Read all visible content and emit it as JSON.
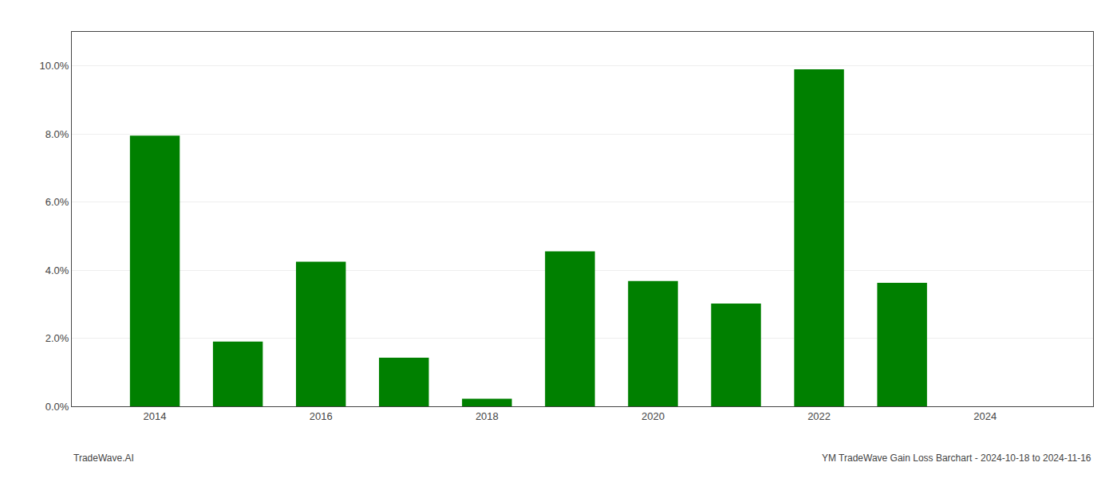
{
  "chart_data": {
    "type": "bar",
    "x": [
      2014,
      2015,
      2016,
      2017,
      2018,
      2019,
      2020,
      2021,
      2022,
      2023,
      2024
    ],
    "values": [
      0.0795,
      0.019,
      0.0425,
      0.0143,
      0.0022,
      0.0455,
      0.0368,
      0.0302,
      0.099,
      0.0363,
      0.0
    ],
    "color": "#008000",
    "xlim": [
      2013.0,
      2025.3
    ],
    "xticks": [
      2014,
      2016,
      2018,
      2020,
      2022,
      2024
    ],
    "ylim": [
      0,
      0.11
    ],
    "yticks": [
      {
        "value": 0.0,
        "label": "0.0%"
      },
      {
        "value": 0.02,
        "label": "2.0%"
      },
      {
        "value": 0.04,
        "label": "4.0%"
      },
      {
        "value": 0.06,
        "label": "6.0%"
      },
      {
        "value": 0.08,
        "label": "8.0%"
      },
      {
        "value": 0.1,
        "label": "10.0%"
      }
    ],
    "grid": true,
    "annotations": [
      "TradeWave.AI",
      "YM TradeWave Gain Loss Barchart - 2024-10-18 to 2024-11-16"
    ]
  }
}
